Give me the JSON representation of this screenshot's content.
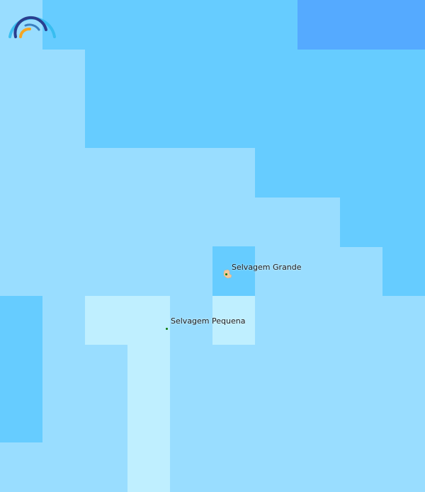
{
  "map": {
    "colors": {
      "shallow": "#99DDFF",
      "medium": "#66CCFF",
      "deep": "#55AAFF",
      "shoal": "#BFEFFF",
      "land": "#F2C79B",
      "marker": "#0a7a0a"
    },
    "places": [
      {
        "name": "Selvagem Grande"
      },
      {
        "name": "Selvagem Pequena"
      }
    ],
    "logo": "rainbow-logo-icon"
  }
}
